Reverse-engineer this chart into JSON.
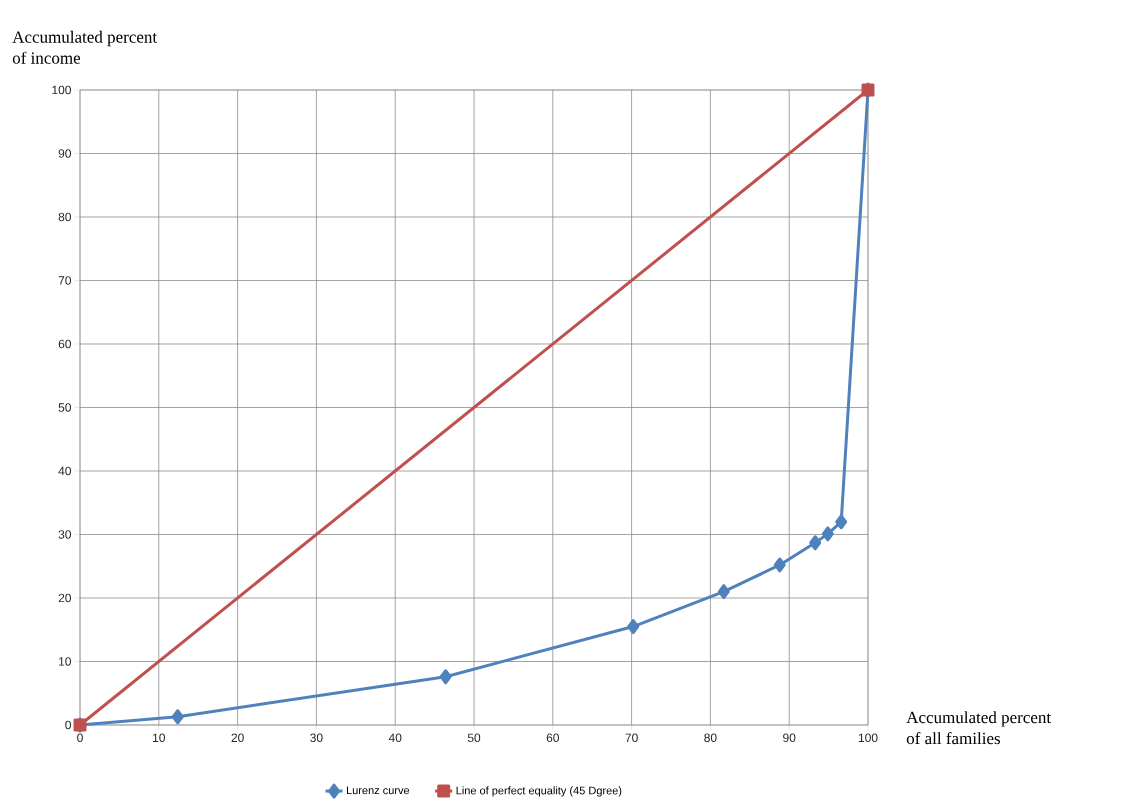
{
  "chart_data": {
    "type": "line",
    "xlabel": "Accumulated percent\nof all families",
    "ylabel": "Accumulated percent\n of income",
    "xlim": [
      0,
      100
    ],
    "ylim": [
      0,
      100
    ],
    "xticks": [
      0,
      10,
      20,
      30,
      40,
      50,
      60,
      70,
      80,
      90,
      100
    ],
    "yticks": [
      0,
      10,
      20,
      30,
      40,
      50,
      60,
      70,
      80,
      90,
      100
    ],
    "grid": true,
    "legend": "bottom",
    "line_style": "solid",
    "series": [
      {
        "name": "Lurenz curve",
        "color": "#4f81bd",
        "marker": "diamond",
        "x": [
          0,
          12.4,
          46.4,
          70.2,
          81.7,
          88.8,
          93.3,
          94.9,
          96.6,
          100
        ],
        "values": [
          0,
          1.3,
          7.6,
          15.5,
          21.0,
          25.2,
          28.7,
          30.1,
          32.0,
          100
        ]
      },
      {
        "name": "Line of perfect equality (45 Dgree)",
        "color": "#c0504d",
        "marker": "square",
        "x": [
          0,
          100
        ],
        "values": [
          0,
          100
        ]
      }
    ]
  }
}
